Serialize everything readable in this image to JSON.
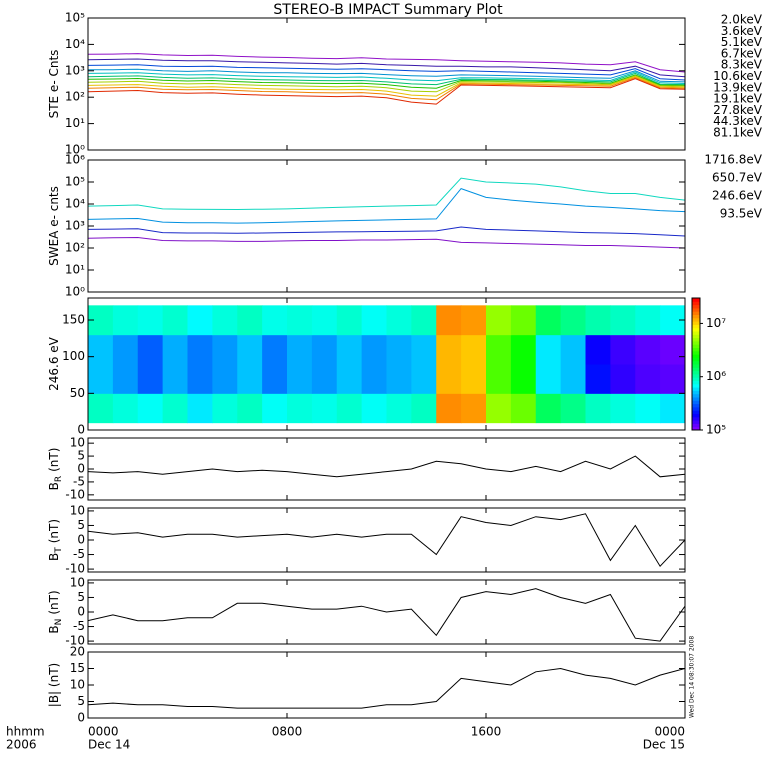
{
  "title": "STEREO-B IMPACT Summary Plot",
  "axis_labels": [
    "hhmm",
    "2006"
  ],
  "timestamp": "Wed Dec 14 08:30:07 2008",
  "chart_data": [
    {
      "type": "line",
      "ylabel": "STE e- Cnts",
      "log": true,
      "x": [
        0,
        1,
        2,
        3,
        4,
        5,
        6,
        7,
        8,
        9,
        10,
        11,
        12,
        13,
        14,
        15,
        16,
        17,
        18,
        19,
        20,
        21,
        22,
        23,
        24
      ],
      "xlim": [
        0,
        24
      ],
      "xticks": [
        0,
        8,
        16,
        24
      ],
      "ylim": [
        1,
        100000
      ],
      "yticks": [
        {
          "value": 1,
          "label": "10⁰"
        },
        {
          "value": 10,
          "label": "10¹"
        },
        {
          "value": 100,
          "label": "10²"
        },
        {
          "value": 1000,
          "label": "10³"
        },
        {
          "value": 10000,
          "label": "10⁴"
        },
        {
          "value": 100000,
          "label": "10⁵"
        }
      ],
      "series": [
        {
          "name": "2.0keV",
          "color": "#9010c8",
          "values": [
            4200,
            4300,
            4500,
            4000,
            3800,
            3900,
            3500,
            3300,
            3200,
            3000,
            2900,
            3100,
            2800,
            2700,
            2600,
            2400,
            2300,
            2200,
            2100,
            2000,
            1800,
            1700,
            2200,
            1100,
            900
          ]
        },
        {
          "name": "3.6keV",
          "color": "#3818a8",
          "values": [
            2600,
            2700,
            2800,
            2500,
            2400,
            2400,
            2200,
            2100,
            2000,
            1900,
            1800,
            1900,
            1700,
            1600,
            1500,
            1500,
            1400,
            1400,
            1300,
            1200,
            1100,
            1000,
            1500,
            700,
            600
          ]
        },
        {
          "name": "5.1keV",
          "color": "#0048d8",
          "values": [
            1600,
            1650,
            1700,
            1500,
            1450,
            1500,
            1350,
            1300,
            1250,
            1200,
            1150,
            1200,
            1100,
            1000,
            950,
            1000,
            950,
            900,
            850,
            800,
            750,
            700,
            1200,
            500,
            450
          ]
        },
        {
          "name": "6.7keV",
          "color": "#0090d0",
          "values": [
            1100,
            1100,
            1150,
            1000,
            950,
            1000,
            900,
            850,
            850,
            800,
            780,
            800,
            720,
            650,
            620,
            700,
            680,
            650,
            620,
            580,
            550,
            520,
            1000,
            400,
            380
          ]
        },
        {
          "name": "8.3keV",
          "color": "#00c0c0",
          "values": [
            800,
            820,
            850,
            750,
            700,
            720,
            660,
            620,
            600,
            580,
            560,
            580,
            520,
            450,
            420,
            550,
            540,
            520,
            500,
            480,
            450,
            430,
            900,
            350,
            330
          ]
        },
        {
          "name": "10.6keV",
          "color": "#00c070",
          "values": [
            600,
            620,
            640,
            560,
            520,
            540,
            490,
            460,
            450,
            430,
            420,
            430,
            380,
            320,
            300,
            480,
            470,
            460,
            440,
            420,
            400,
            380,
            800,
            310,
            300
          ]
        },
        {
          "name": "13.9keV",
          "color": "#20c000",
          "values": [
            480,
            490,
            510,
            440,
            410,
            430,
            390,
            360,
            350,
            340,
            330,
            340,
            300,
            240,
            220,
            430,
            420,
            410,
            400,
            380,
            360,
            340,
            700,
            290,
            280
          ]
        },
        {
          "name": "19.1keV",
          "color": "#a8d000",
          "values": [
            370,
            380,
            400,
            340,
            320,
            330,
            300,
            280,
            270,
            260,
            250,
            260,
            230,
            170,
            160,
            390,
            380,
            370,
            360,
            350,
            330,
            310,
            650,
            270,
            260
          ]
        },
        {
          "name": "27.8keV",
          "color": "#e8c000",
          "values": [
            280,
            290,
            300,
            260,
            240,
            250,
            230,
            210,
            200,
            195,
            190,
            195,
            170,
            120,
            110,
            350,
            340,
            330,
            320,
            310,
            300,
            290,
            600,
            250,
            240
          ]
        },
        {
          "name": "44.3keV",
          "color": "#f08000",
          "values": [
            220,
            230,
            240,
            200,
            190,
            195,
            180,
            165,
            160,
            150,
            145,
            150,
            130,
            90,
            80,
            320,
            310,
            300,
            290,
            280,
            270,
            260,
            550,
            230,
            220
          ]
        },
        {
          "name": "81.1keV",
          "color": "#e02800",
          "values": [
            160,
            170,
            180,
            150,
            140,
            145,
            130,
            120,
            115,
            110,
            105,
            110,
            95,
            65,
            55,
            290,
            280,
            270,
            260,
            250,
            240,
            230,
            500,
            210,
            200
          ]
        }
      ]
    },
    {
      "type": "line",
      "ylabel": "SWEA e- cnts",
      "log": true,
      "x": [
        0,
        1,
        2,
        3,
        4,
        5,
        6,
        7,
        8,
        9,
        10,
        11,
        12,
        13,
        14,
        15,
        16,
        17,
        18,
        19,
        20,
        21,
        22,
        23,
        24
      ],
      "xlim": [
        0,
        24
      ],
      "xticks": [
        0,
        8,
        16,
        24
      ],
      "ylim": [
        1,
        1000000
      ],
      "yticks": [
        {
          "value": 1,
          "label": "10⁰"
        },
        {
          "value": 10,
          "label": "10¹"
        },
        {
          "value": 100,
          "label": "10²"
        },
        {
          "value": 1000,
          "label": "10³"
        },
        {
          "value": 10000,
          "label": "10⁴"
        },
        {
          "value": 100000,
          "label": "10⁵"
        },
        {
          "value": 1000000,
          "label": "10⁶"
        }
      ],
      "series": [
        {
          "name": "1716.8eV",
          "color": "#8010c8",
          "values": [
            280,
            290,
            300,
            220,
            210,
            210,
            200,
            200,
            210,
            220,
            220,
            230,
            230,
            240,
            250,
            180,
            170,
            160,
            150,
            140,
            130,
            130,
            120,
            110,
            100
          ]
        },
        {
          "name": "650.7eV",
          "color": "#1828c8",
          "values": [
            700,
            720,
            750,
            500,
            480,
            480,
            470,
            480,
            500,
            520,
            540,
            550,
            560,
            580,
            600,
            900,
            700,
            650,
            600,
            550,
            500,
            480,
            450,
            400,
            350
          ]
        },
        {
          "name": "246.6eV",
          "color": "#0090e0",
          "values": [
            2000,
            2100,
            2200,
            1500,
            1400,
            1400,
            1350,
            1400,
            1500,
            1600,
            1700,
            1800,
            1900,
            2000,
            2100,
            50000,
            20000,
            15000,
            12000,
            10000,
            8000,
            7000,
            6000,
            5000,
            4500
          ]
        },
        {
          "name": "93.5eV",
          "color": "#10d8c0",
          "values": [
            8000,
            8500,
            9000,
            6000,
            5800,
            5700,
            5600,
            5800,
            6000,
            6500,
            7000,
            7500,
            8000,
            8500,
            9000,
            150000,
            100000,
            90000,
            80000,
            60000,
            40000,
            30000,
            30000,
            20000,
            15000
          ]
        }
      ]
    },
    {
      "type": "heatmap",
      "ylabel": "246.6 eV",
      "x": [
        0,
        1,
        2,
        3,
        4,
        5,
        6,
        7,
        8,
        9,
        10,
        11,
        12,
        13,
        14,
        15,
        16,
        17,
        18,
        19,
        20,
        21,
        22,
        23,
        24
      ],
      "y": [
        10,
        50,
        90,
        130,
        170
      ],
      "xlim": [
        0,
        24
      ],
      "xticks": [
        0,
        8,
        16,
        24
      ],
      "ylim": [
        0,
        180
      ],
      "yticks": [
        0,
        50,
        100,
        150
      ],
      "zlim": [
        100000,
        30000000
      ],
      "zticks": [
        {
          "value": 100000,
          "label": "10⁵"
        },
        {
          "value": 1000000,
          "label": "10⁶"
        },
        {
          "value": 10000000,
          "label": "10⁷"
        }
      ],
      "z": [
        [
          900000,
          800000,
          700000,
          850000,
          600000,
          800000,
          900000,
          700000,
          800000,
          750000,
          850000,
          700000,
          800000,
          900000,
          15000000,
          14000000,
          5000000,
          4000000,
          1500000,
          1200000,
          900000,
          800000,
          700000,
          600000
        ],
        [
          500000,
          400000,
          300000,
          450000,
          350000,
          400000,
          500000,
          350000,
          450000,
          400000,
          500000,
          400000,
          450000,
          500000,
          12000000,
          11000000,
          3500000,
          2500000,
          600000,
          500000,
          200000,
          150000,
          130000,
          120000
        ],
        [
          500000,
          400000,
          300000,
          450000,
          350000,
          400000,
          500000,
          350000,
          450000,
          400000,
          500000,
          400000,
          450000,
          500000,
          12000000,
          11000000,
          3500000,
          2500000,
          600000,
          500000,
          180000,
          140000,
          120000,
          110000
        ],
        [
          900000,
          800000,
          750000,
          850000,
          650000,
          800000,
          900000,
          750000,
          800000,
          750000,
          850000,
          700000,
          800000,
          900000,
          15000000,
          14000000,
          5000000,
          4000000,
          1500000,
          1200000,
          1000000,
          900000,
          800000,
          700000
        ]
      ]
    },
    {
      "type": "line",
      "ylabel": "B",
      "ylabel_sub": "R",
      "ylabel_unit": "(nT)",
      "x": [
        0,
        1,
        2,
        3,
        4,
        5,
        6,
        7,
        8,
        9,
        10,
        11,
        12,
        13,
        14,
        15,
        16,
        17,
        18,
        19,
        20,
        21,
        22,
        23,
        24
      ],
      "xlim": [
        0,
        24
      ],
      "xticks": [
        0,
        8,
        16,
        24
      ],
      "ylim": [
        -12,
        12
      ],
      "yticks": [
        -10,
        -5,
        0,
        5,
        10
      ],
      "series": [
        {
          "color": "#000000",
          "values": [
            -1,
            -1.5,
            -1,
            -2,
            -1,
            0,
            -1,
            -0.5,
            -1,
            -2,
            -3,
            -2,
            -1,
            0,
            3,
            2,
            0,
            -1,
            1,
            -1,
            3,
            0,
            5,
            -3,
            -2
          ]
        }
      ]
    },
    {
      "type": "line",
      "ylabel": "B",
      "ylabel_sub": "T",
      "ylabel_unit": "(nT)",
      "x": [
        0,
        1,
        2,
        3,
        4,
        5,
        6,
        7,
        8,
        9,
        10,
        11,
        12,
        13,
        14,
        15,
        16,
        17,
        18,
        19,
        20,
        21,
        22,
        23,
        24
      ],
      "xlim": [
        0,
        24
      ],
      "xticks": [
        0,
        8,
        16,
        24
      ],
      "ylim": [
        -11,
        11
      ],
      "yticks": [
        -10,
        -5,
        0,
        5,
        10
      ],
      "series": [
        {
          "color": "#000000",
          "values": [
            3,
            2,
            2.5,
            1,
            2,
            2,
            1,
            1.5,
            2,
            1,
            2,
            1,
            2,
            2,
            -5,
            8,
            6,
            5,
            8,
            7,
            9,
            -7,
            5,
            -9,
            0
          ]
        }
      ]
    },
    {
      "type": "line",
      "ylabel": "B",
      "ylabel_sub": "N",
      "ylabel_unit": "(nT)",
      "x": [
        0,
        1,
        2,
        3,
        4,
        5,
        6,
        7,
        8,
        9,
        10,
        11,
        12,
        13,
        14,
        15,
        16,
        17,
        18,
        19,
        20,
        21,
        22,
        23,
        24
      ],
      "xlim": [
        0,
        24
      ],
      "xticks": [
        0,
        8,
        16,
        24
      ],
      "ylim": [
        -11,
        11
      ],
      "yticks": [
        -10,
        -5,
        0,
        5,
        10
      ],
      "series": [
        {
          "color": "#000000",
          "values": [
            -3,
            -1,
            -3,
            -3,
            -2,
            -2,
            3,
            3,
            2,
            1,
            1,
            2,
            0,
            1,
            -8,
            5,
            7,
            6,
            8,
            5,
            3,
            6,
            -9,
            -10,
            2
          ]
        }
      ]
    },
    {
      "type": "line",
      "ylabel": "|B| (nT)",
      "x": [
        0,
        1,
        2,
        3,
        4,
        5,
        6,
        7,
        8,
        9,
        10,
        11,
        12,
        13,
        14,
        15,
        16,
        17,
        18,
        19,
        20,
        21,
        22,
        23,
        24
      ],
      "xlim": [
        0,
        24
      ],
      "xticks": [
        {
          "value": 0,
          "label": "0000"
        },
        {
          "value": 8,
          "label": "0800"
        },
        {
          "value": 16,
          "label": "1600"
        },
        {
          "value": 24,
          "label": "0000"
        }
      ],
      "date_labels": [
        "Dec 14",
        "Dec 15"
      ],
      "ylim": [
        0,
        20
      ],
      "yticks": [
        0,
        5,
        10,
        15,
        20
      ],
      "series": [
        {
          "color": "#000000",
          "values": [
            4,
            4.5,
            4,
            4,
            3.5,
            3.5,
            3,
            3,
            3,
            3,
            3,
            3,
            4,
            4,
            5,
            12,
            11,
            10,
            14,
            15,
            13,
            12,
            10,
            13,
            15
          ]
        }
      ]
    }
  ]
}
